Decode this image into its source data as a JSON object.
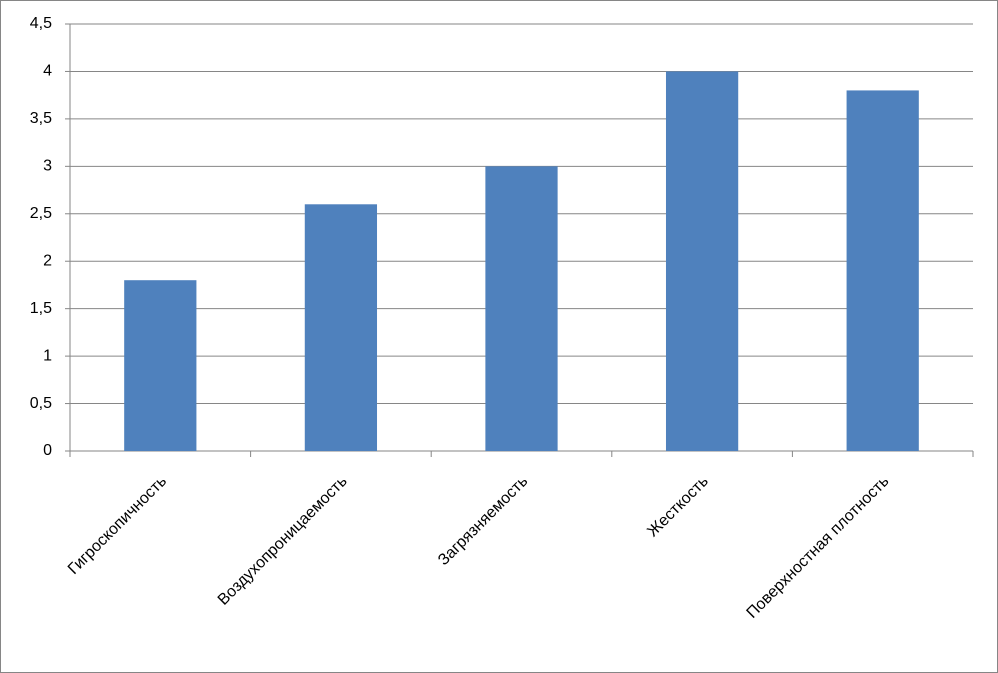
{
  "chart_data": {
    "type": "bar",
    "categories": [
      "Гигроскопичность",
      "Воздухопроницаемость",
      "Загрязняемость",
      "Жесткость",
      "Поверхностная плотность"
    ],
    "values": [
      1.8,
      2.6,
      3.0,
      4.0,
      3.8
    ],
    "color": "#4f81bd",
    "ylim": [
      0,
      4.5
    ],
    "yticks": [
      0,
      {
        "value": 0.5,
        "label": "0,5"
      },
      1,
      {
        "value": 1.5,
        "label": "1,5"
      },
      2,
      {
        "value": 2.5,
        "label": "2,5"
      },
      3,
      {
        "value": 3.5,
        "label": "3,5"
      },
      4,
      {
        "value": 4.5,
        "label": "4,5"
      }
    ],
    "grid": true
  }
}
